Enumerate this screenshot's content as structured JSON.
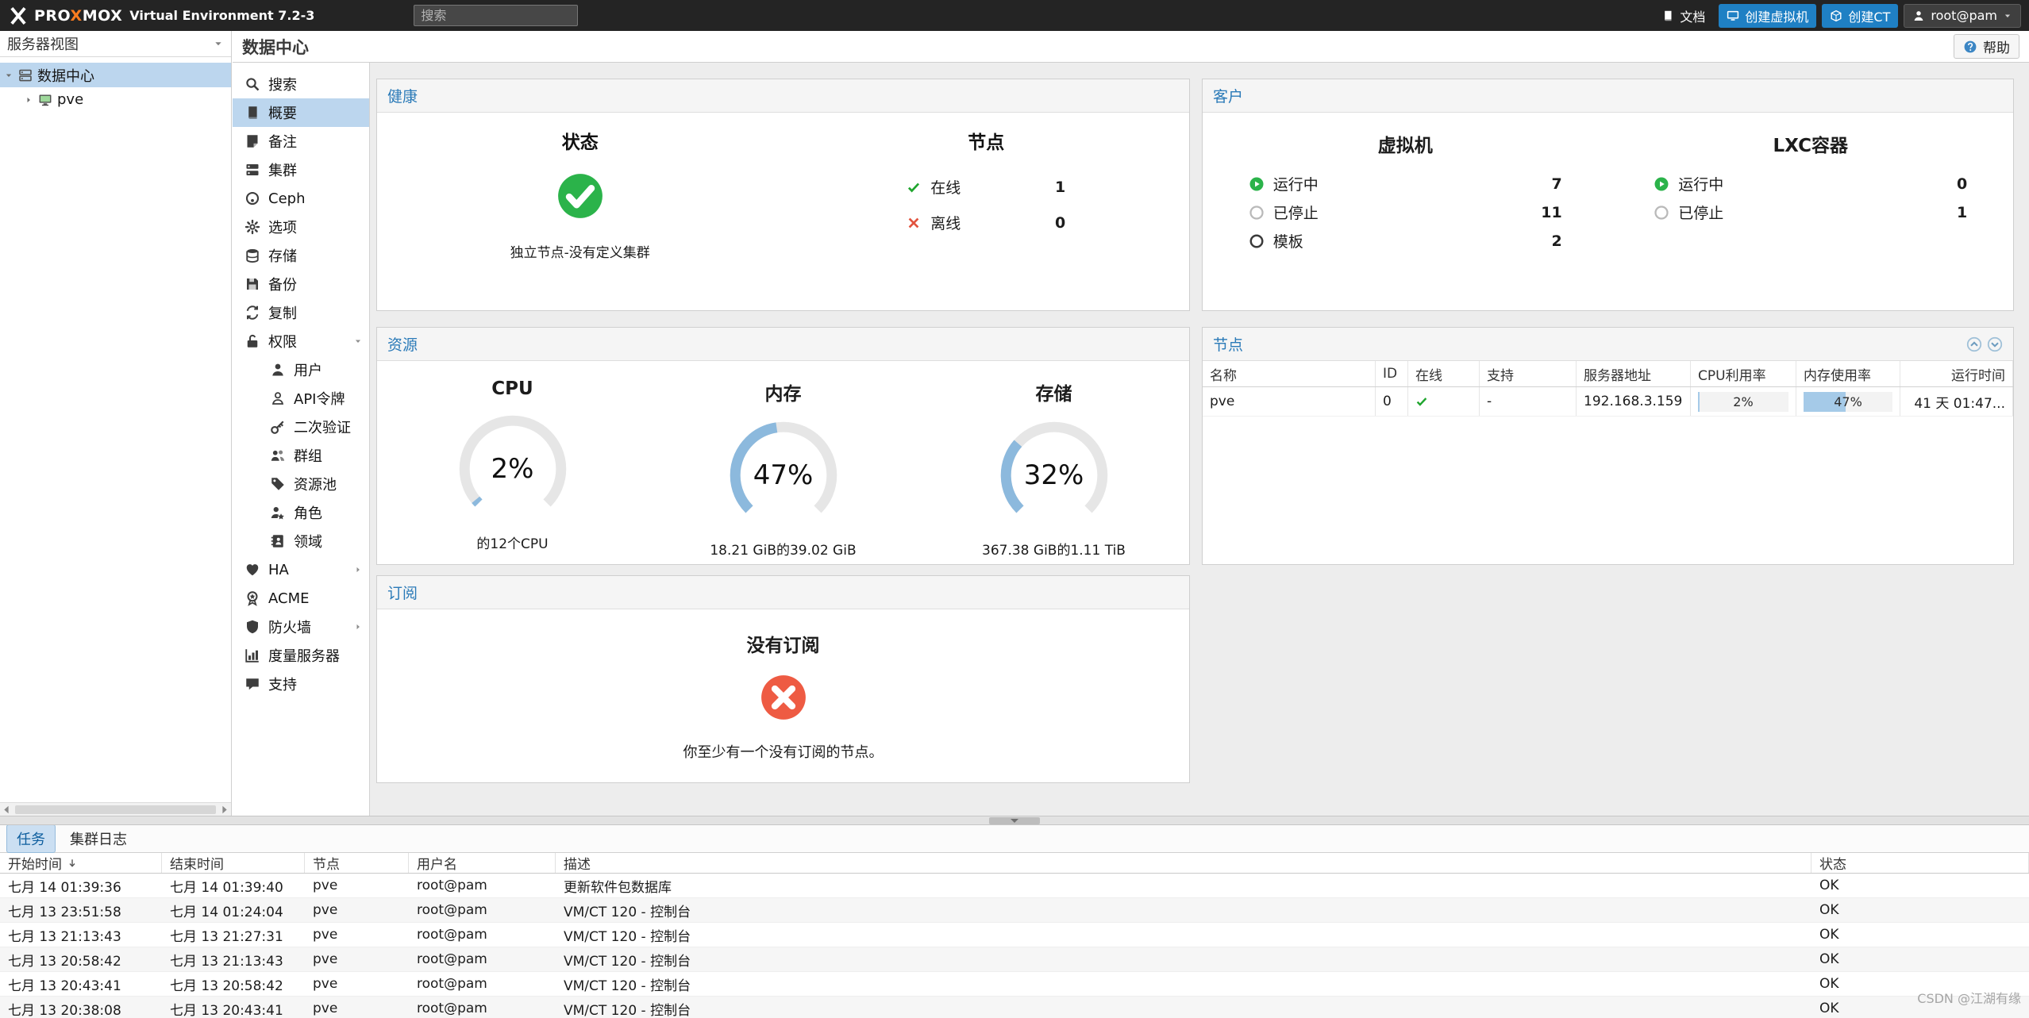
{
  "topbar": {
    "brand": {
      "pre": "PRO",
      "x": "X",
      "post": "MOX",
      "subtitle": "Virtual Environment 7.2-3"
    },
    "search_placeholder": "搜索",
    "docs_label": "文档",
    "create_vm_label": "创建虚拟机",
    "create_ct_label": "创建CT",
    "user_label": "root@pam"
  },
  "sidebar": {
    "view_select_label": "服务器视图",
    "tree": [
      {
        "key": "datacenter",
        "label": "数据中心",
        "icon": "server-icon",
        "selected": true,
        "expanded": true,
        "indent": 0
      },
      {
        "key": "pve",
        "label": "pve",
        "icon": "monitor-icon",
        "selected": false,
        "expanded": false,
        "indent": 1
      }
    ]
  },
  "dc_header": {
    "title": "数据中心",
    "help_label": "帮助"
  },
  "menu": {
    "items": [
      {
        "key": "search",
        "label": "搜索",
        "icon": "search-icon"
      },
      {
        "key": "summary",
        "label": "概要",
        "icon": "book-icon",
        "selected": true
      },
      {
        "key": "notes",
        "label": "备注",
        "icon": "note-icon"
      },
      {
        "key": "cluster",
        "label": "集群",
        "icon": "cluster-icon"
      },
      {
        "key": "ceph",
        "label": "Ceph",
        "icon": "ceph-icon"
      },
      {
        "key": "options",
        "label": "选项",
        "icon": "gear-icon"
      },
      {
        "key": "storage",
        "label": "存储",
        "icon": "database-icon"
      },
      {
        "key": "backup",
        "label": "备份",
        "icon": "floppy-icon"
      },
      {
        "key": "replication",
        "label": "复制",
        "icon": "replication-icon"
      },
      {
        "key": "permissions",
        "label": "权限",
        "icon": "unlock-icon",
        "expandable": true,
        "expanded": true
      },
      {
        "key": "users",
        "label": "用户",
        "icon": "user-icon",
        "indent": 1
      },
      {
        "key": "api-tokens",
        "label": "API令牌",
        "icon": "user-outline-icon",
        "indent": 1
      },
      {
        "key": "two-factor",
        "label": "二次验证",
        "icon": "key-icon",
        "indent": 1
      },
      {
        "key": "groups",
        "label": "群组",
        "icon": "users-icon",
        "indent": 1
      },
      {
        "key": "pools",
        "label": "资源池",
        "icon": "tag-icon",
        "indent": 1
      },
      {
        "key": "roles",
        "label": "角色",
        "icon": "role-icon",
        "indent": 1
      },
      {
        "key": "realms",
        "label": "领域",
        "icon": "realm-icon",
        "indent": 1
      },
      {
        "key": "ha",
        "label": "HA",
        "icon": "heart-icon",
        "expandable": true,
        "expanded": false
      },
      {
        "key": "acme",
        "label": "ACME",
        "icon": "cert-icon"
      },
      {
        "key": "firewall",
        "label": "防火墙",
        "icon": "shield-icon",
        "expandable": true,
        "expanded": false
      },
      {
        "key": "metric-server",
        "label": "度量服务器",
        "icon": "chart-icon"
      },
      {
        "key": "support",
        "label": "支持",
        "icon": "support-icon"
      }
    ]
  },
  "health": {
    "title": "健康",
    "status_heading": "状态",
    "status_text": "独立节点-没有定义集群",
    "nodes_heading": "节点",
    "rows": [
      {
        "label": "在线",
        "value": "1",
        "icon": "check-icon"
      },
      {
        "label": "离线",
        "value": "0",
        "icon": "cross-icon"
      }
    ]
  },
  "guests": {
    "title": "客户",
    "columns": [
      {
        "key": "vm",
        "heading": "虚拟机",
        "rows": [
          {
            "label": "运行中",
            "value": "7",
            "icon": "play-circle-icon"
          },
          {
            "label": "已停止",
            "value": "11",
            "icon": "stop-circle-icon"
          },
          {
            "label": "模板",
            "value": "2",
            "icon": "template-icon"
          }
        ]
      },
      {
        "key": "lxc",
        "heading": "LXC容器",
        "rows": [
          {
            "label": "运行中",
            "value": "0",
            "icon": "play-circle-icon"
          },
          {
            "label": "已停止",
            "value": "1",
            "icon": "stop-circle-icon"
          }
        ]
      }
    ]
  },
  "resources": {
    "title": "资源",
    "gauges": [
      {
        "key": "cpu",
        "label": "CPU",
        "percent": 2,
        "display": "2%",
        "caption": "的12个CPU"
      },
      {
        "key": "memory",
        "label": "内存",
        "percent": 47,
        "display": "47%",
        "caption": "18.21 GiB的39.02 GiB"
      },
      {
        "key": "storage",
        "label": "存储",
        "percent": 32,
        "display": "32%",
        "caption": "367.38 GiB的1.11 TiB"
      }
    ]
  },
  "nodes": {
    "title": "节点",
    "columns": [
      "名称",
      "ID",
      "在线",
      "支持",
      "服务器地址",
      "CPU利用率",
      "内存使用率",
      "运行时间"
    ],
    "rows": [
      {
        "name": "pve",
        "id": "0",
        "online": true,
        "support": "-",
        "address": "192.168.3.159",
        "cpu_percent": 2,
        "cpu_display": "2%",
        "mem_percent": 47,
        "mem_display": "47%",
        "uptime": "41 天 01:47..."
      }
    ]
  },
  "subscription": {
    "title": "订阅",
    "heading": "没有订阅",
    "message": "你至少有一个没有订阅的节点。"
  },
  "taskbar": {
    "tabs": [
      {
        "key": "tasks",
        "label": "任务",
        "active": true
      },
      {
        "key": "cluster-log",
        "label": "集群日志",
        "active": false
      }
    ],
    "columns": [
      "开始时间",
      "结束时间",
      "节点",
      "用户名",
      "描述",
      "状态"
    ],
    "rows": [
      [
        "七月 14 01:39:36",
        "七月 14 01:39:40",
        "pve",
        "root@pam",
        "更新软件包数据库",
        "OK"
      ],
      [
        "七月 13 23:51:58",
        "七月 14 01:24:04",
        "pve",
        "root@pam",
        "VM/CT 120 - 控制台",
        "OK"
      ],
      [
        "七月 13 21:13:43",
        "七月 13 21:27:31",
        "pve",
        "root@pam",
        "VM/CT 120 - 控制台",
        "OK"
      ],
      [
        "七月 13 20:58:42",
        "七月 13 21:13:43",
        "pve",
        "root@pam",
        "VM/CT 120 - 控制台",
        "OK"
      ],
      [
        "七月 13 20:43:41",
        "七月 13 20:58:42",
        "pve",
        "root@pam",
        "VM/CT 120 - 控制台",
        "OK"
      ],
      [
        "七月 13 20:38:08",
        "七月 13 20:43:41",
        "pve",
        "root@pam",
        "VM/CT 120 - 控制台",
        "OK"
      ]
    ]
  },
  "watermark": "CSDN @江湖有缘",
  "colors": {
    "accent_blue": "#1f80c4",
    "title_blue": "#2a7ab8",
    "green": "#2bb34a",
    "red": "#ee5b43",
    "gauge_fill": "#8cb9dd",
    "gauge_track": "#e6e6e6",
    "selection": "#bcd6ee"
  }
}
